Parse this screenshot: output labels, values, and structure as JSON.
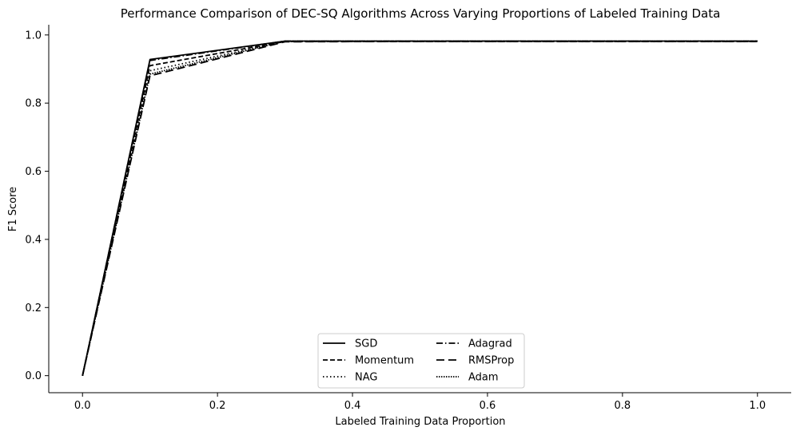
{
  "chart_data": {
    "type": "line",
    "title": "Performance Comparison of DEC-SQ Algorithms Across Varying Proportions of Labeled Training Data",
    "xlabel": "Labeled Training Data Proportion",
    "ylabel": "F1 Score",
    "x": [
      0.0,
      0.1,
      0.3,
      0.5,
      0.7,
      1.0
    ],
    "xlim": [
      -0.05,
      1.05
    ],
    "ylim": [
      -0.05,
      1.03
    ],
    "xticks": [
      "0.0",
      "0.2",
      "0.4",
      "0.6",
      "0.8",
      "1.0"
    ],
    "yticks": [
      "0.0",
      "0.2",
      "0.4",
      "0.6",
      "0.8",
      "1.0"
    ],
    "grid": false,
    "legend_position": "bottom-center",
    "series": [
      {
        "name": "SGD",
        "values": [
          0.0,
          0.928,
          0.982,
          0.982,
          0.982,
          0.982
        ],
        "style": "solid"
      },
      {
        "name": "Momentum",
        "values": [
          0.0,
          0.91,
          0.981,
          0.981,
          0.981,
          0.981
        ],
        "style": "dashed"
      },
      {
        "name": "NAG",
        "values": [
          0.0,
          0.895,
          0.981,
          0.982,
          0.982,
          0.982
        ],
        "style": "dotted"
      },
      {
        "name": "Adagrad",
        "values": [
          0.0,
          0.925,
          0.982,
          0.982,
          0.982,
          0.982
        ],
        "style": "dashdot"
      },
      {
        "name": "RMSProp",
        "values": [
          0.0,
          0.88,
          0.98,
          0.981,
          0.981,
          0.981
        ],
        "style": "longdash"
      },
      {
        "name": "Adam",
        "values": [
          0.0,
          0.885,
          0.982,
          0.982,
          0.982,
          0.982
        ],
        "style": "densedot"
      }
    ]
  }
}
